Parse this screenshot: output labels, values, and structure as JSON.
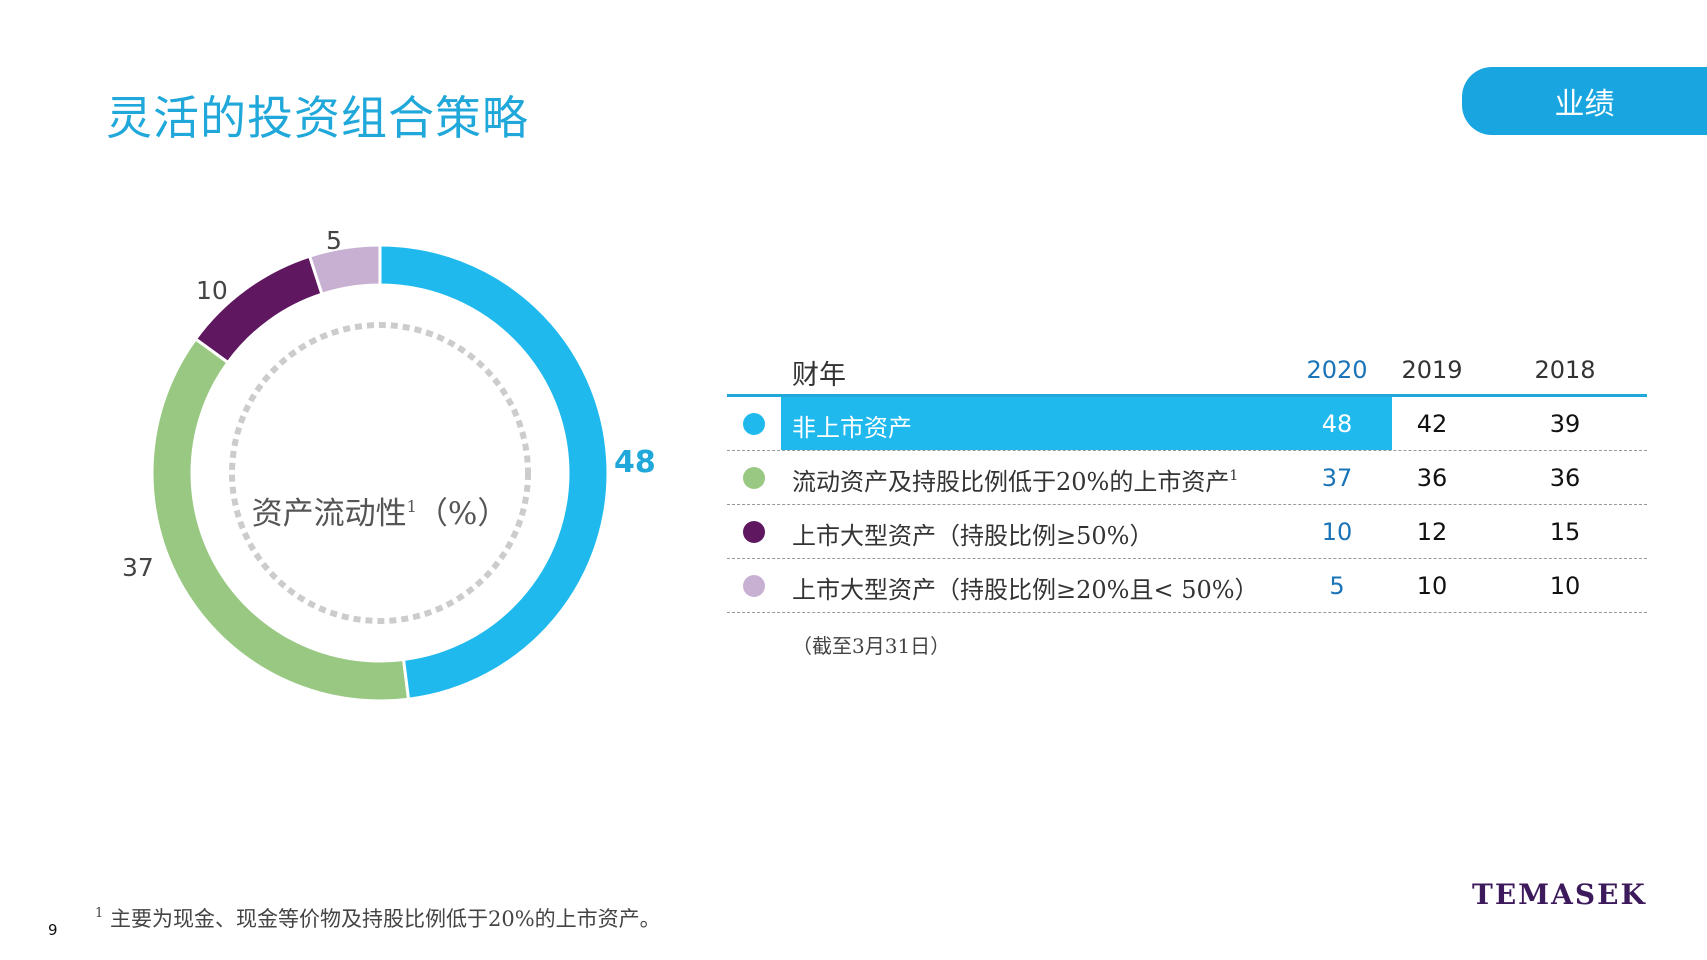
{
  "title": "灵活的投资组合策略",
  "tab": "业绩",
  "center_label": "资产流动性",
  "center_label_sup": "1",
  "center_label_unit": "（%）",
  "table": {
    "header": {
      "fiscal_year": "财年",
      "y2020": "2020",
      "y2019": "2019",
      "y2018": "2018"
    },
    "rows": [
      {
        "label": "非上市资产",
        "sup": "",
        "y2020": "48",
        "y2019": "42",
        "y2018": "39",
        "color": "#1fb9ee"
      },
      {
        "label": "流动资产及持股比例低于20%的上市资产",
        "sup": "1",
        "y2020": "37",
        "y2019": "36",
        "y2018": "36",
        "color": "#98c881"
      },
      {
        "label": "上市大型资产（持股比例≥50%）",
        "sup": "",
        "y2020": "10",
        "y2019": "12",
        "y2018": "15",
        "color": "#5f1760"
      },
      {
        "label": "上市大型资产（持股比例≥20%且< 50%）",
        "sup": "",
        "y2020": "5",
        "y2019": "10",
        "y2018": "10",
        "color": "#c8b0d3"
      }
    ]
  },
  "as_of": "（截至3月31日）",
  "footnote": {
    "sup": "1",
    "text": "主要为现金、现金等价物及持股比例低于20%的上市资产。"
  },
  "page_number": "9",
  "logo": "TEMASEK",
  "chart_data": {
    "type": "pie",
    "donut": true,
    "categories": [
      "非上市资产",
      "流动资产及持股比例低于20%的上市资产",
      "上市大型资产（持股比例≥50%）",
      "上市大型资产（持股比例≥20%且< 50%）"
    ],
    "values": [
      48,
      37,
      10,
      5
    ],
    "colors": [
      "#1fb9ee",
      "#98c881",
      "#5f1760",
      "#c8b0d3"
    ],
    "data_labels": [
      "48",
      "37",
      "10",
      "5"
    ],
    "title": "资产流动性1（%）"
  }
}
